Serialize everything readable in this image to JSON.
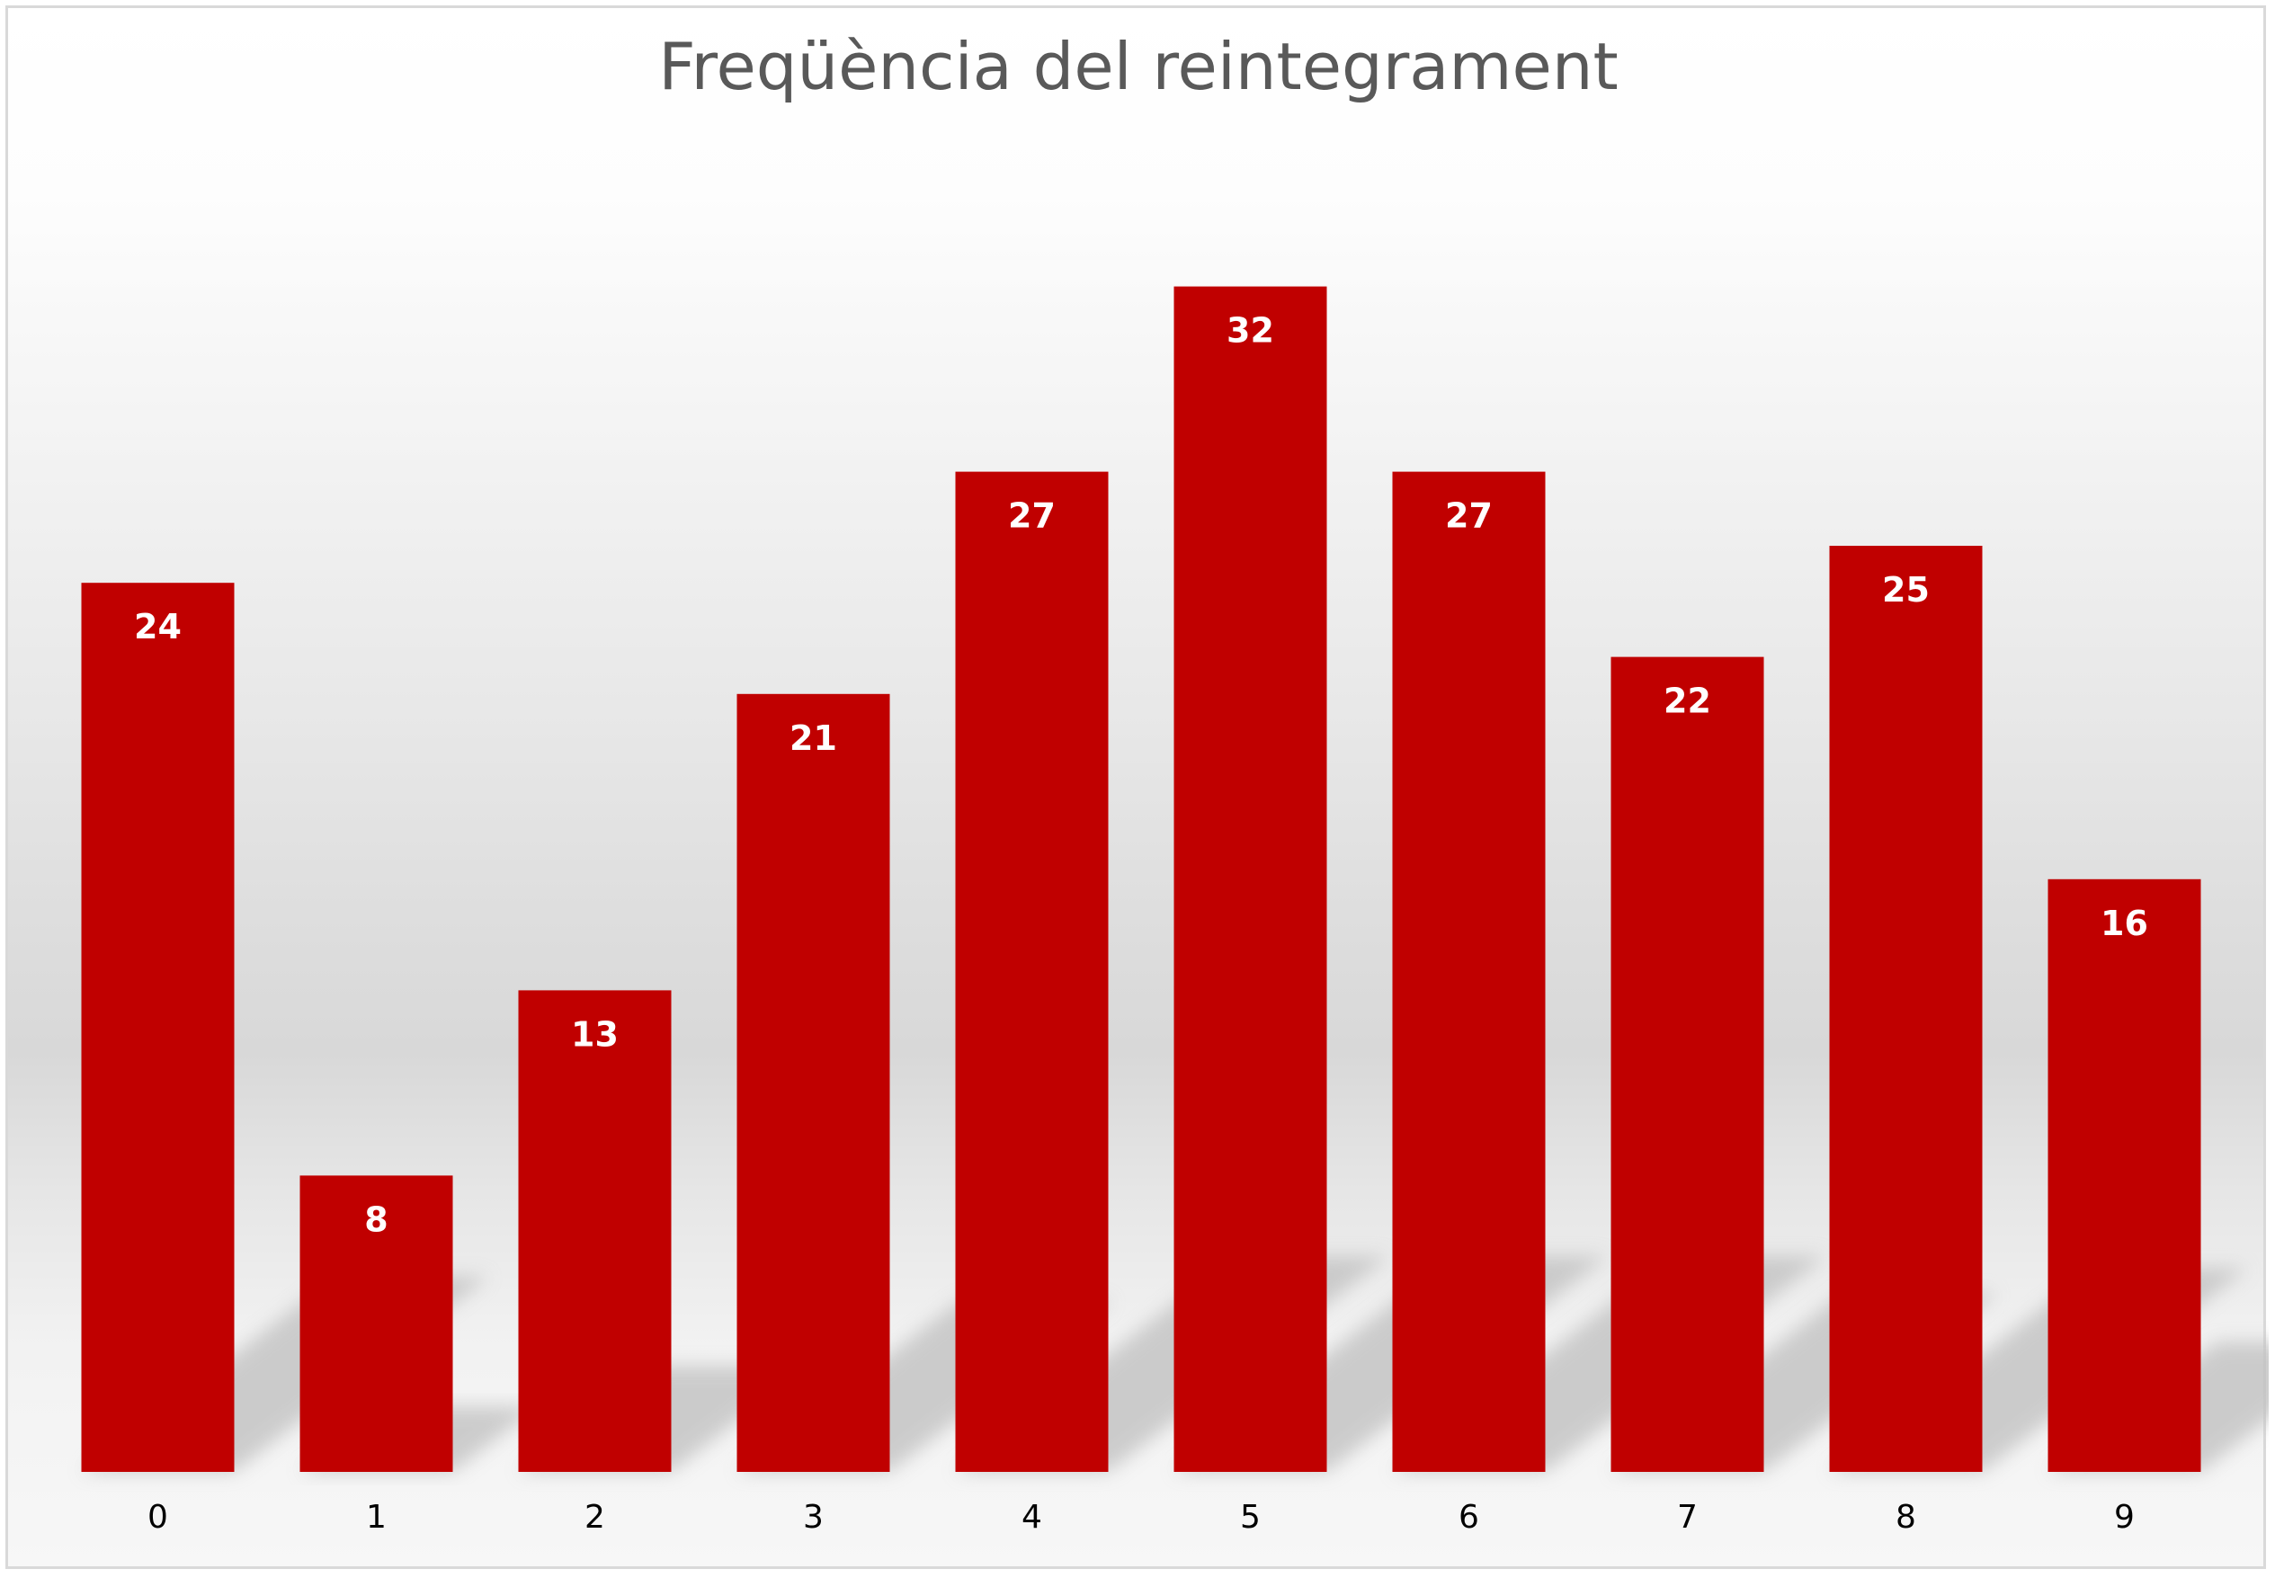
{
  "colors": {
    "bar": "#c00000",
    "data_label": "#ffffff",
    "title": "#595959",
    "tick_label": "#000000",
    "shadow": "#c2c2c2"
  },
  "chart_data": {
    "type": "bar",
    "title": "Freqüència del reintegrament",
    "xlabel": "",
    "ylabel": "",
    "categories": [
      "0",
      "1",
      "2",
      "3",
      "4",
      "5",
      "6",
      "7",
      "8",
      "9"
    ],
    "values": [
      24,
      8,
      13,
      21,
      27,
      32,
      27,
      22,
      25,
      16
    ],
    "ylim": [
      0,
      40
    ],
    "grid": false,
    "legend": "none",
    "data_labels": "inside-end"
  }
}
